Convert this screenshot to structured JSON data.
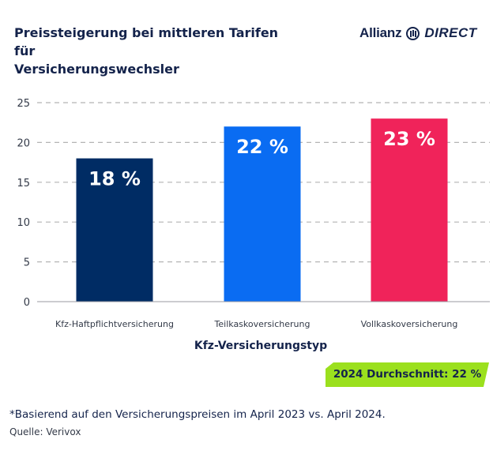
{
  "header": {
    "title_line1": "Preissteigerung bei mittleren Tarifen für",
    "title_line2": "Versicherungswechsler",
    "logo_brand": "Allianz",
    "logo_suffix": "DIRECT",
    "logo_icon": "allianz-eagle-icon"
  },
  "colors": {
    "navy": "#002c64",
    "blue": "#0a6cf2",
    "red": "#f0235a",
    "lime": "#9be01e",
    "grid": "#b4b4b4",
    "text": "#14234b"
  },
  "chart_data": {
    "type": "bar",
    "title": "Preissteigerung bei mittleren Tarifen für Versicherungswechsler",
    "categories": [
      "Kfz-Haftpflichtversicherung",
      "Teilkaskoversicherung",
      "Vollkaskoversicherung"
    ],
    "values": [
      18,
      22,
      23
    ],
    "data_labels": [
      "18 %",
      "22 %",
      "23 %"
    ],
    "bar_colors": [
      "#002c64",
      "#0a6cf2",
      "#f0235a"
    ],
    "xlabel": "Kfz-Versicherungstyp",
    "ylabel": "",
    "ylim": [
      0,
      25
    ],
    "yticks": [
      0,
      5,
      10,
      15,
      20,
      25
    ],
    "grid": true,
    "grid_style": "dashed",
    "legend": "none"
  },
  "badge": {
    "text": "2024 Durchschnitt: 22 %"
  },
  "footer": {
    "footnote": "*Basierend auf den Versicherungspreisen im April 2023 vs. April 2024.",
    "source": "Quelle: Verivox"
  }
}
